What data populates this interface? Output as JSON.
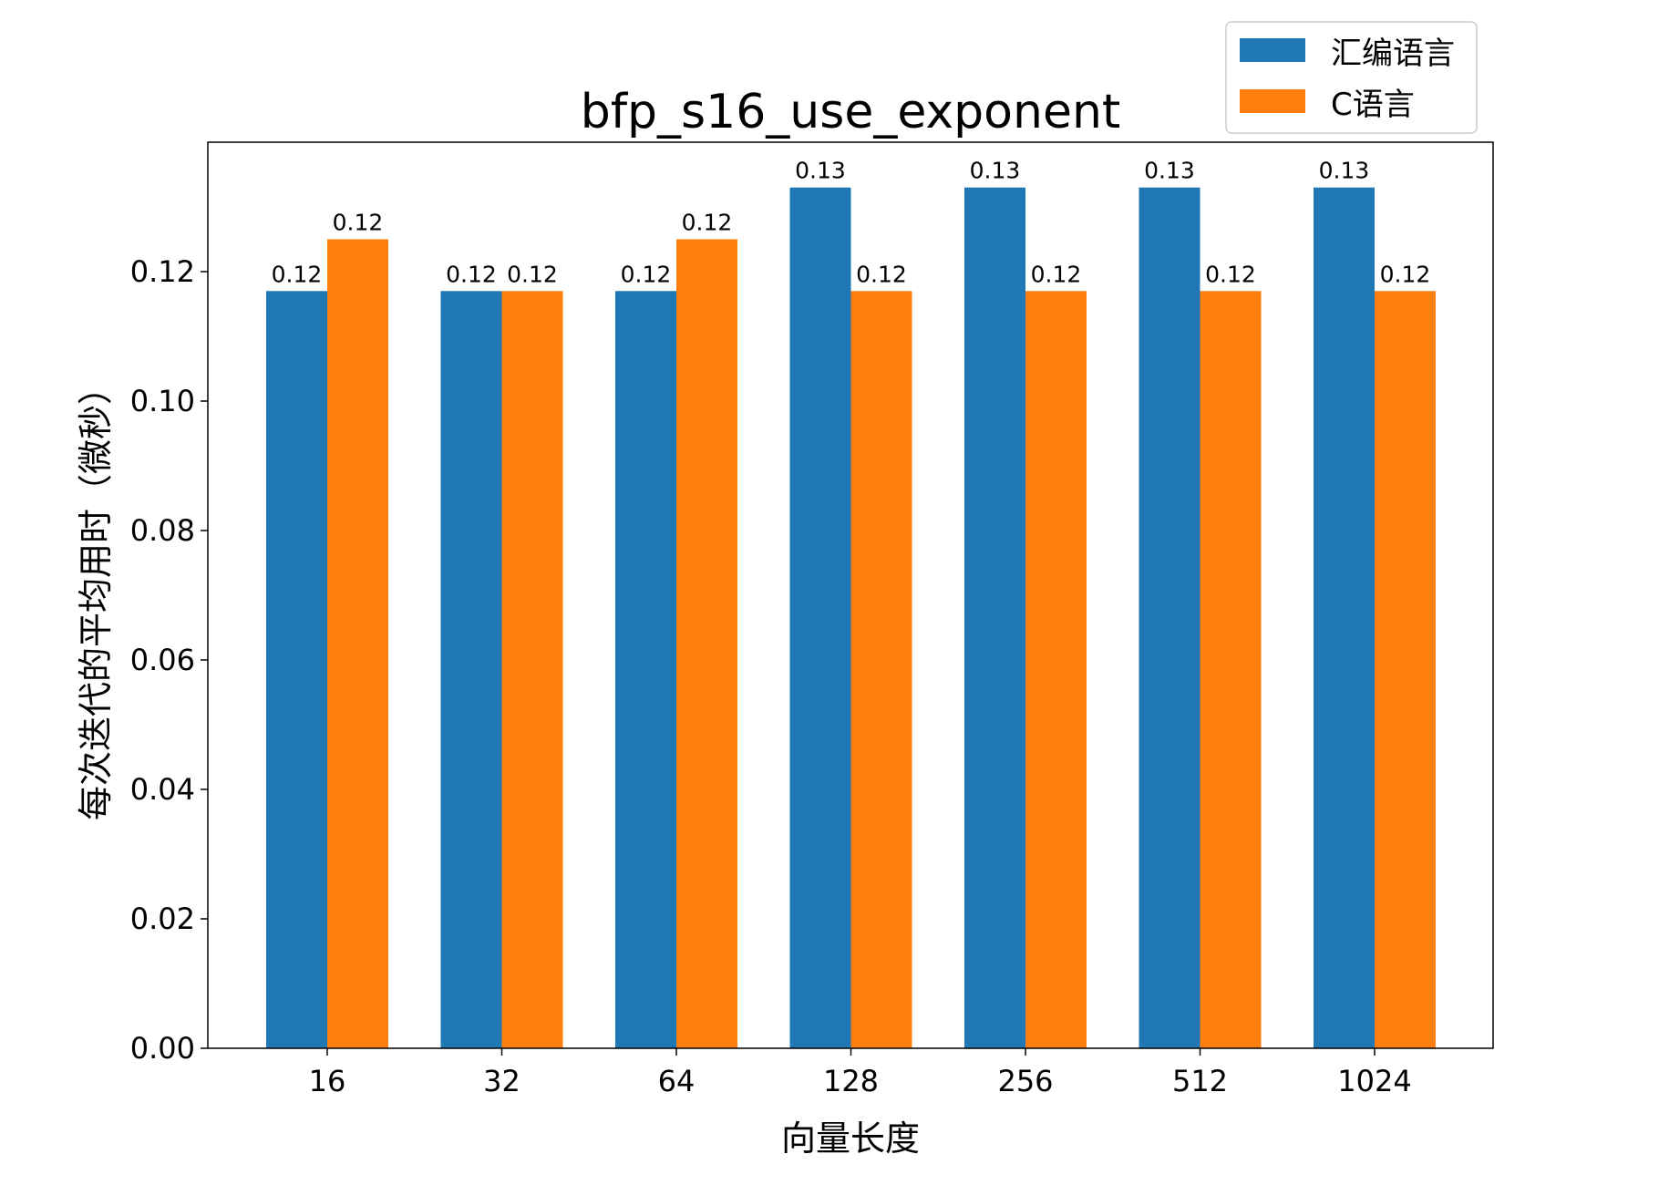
{
  "chart_data": {
    "type": "bar",
    "title": "bfp_s16_use_exponent",
    "xlabel": "向量长度",
    "ylabel": "每次迭代的平均用时（微秒）",
    "categories": [
      "16",
      "32",
      "64",
      "128",
      "256",
      "512",
      "1024"
    ],
    "series": [
      {
        "name": "汇编语言",
        "color": "#1f77b4",
        "values": [
          0.117,
          0.117,
          0.117,
          0.133,
          0.133,
          0.133,
          0.133
        ],
        "labels": [
          "0.12",
          "0.12",
          "0.12",
          "0.13",
          "0.13",
          "0.13",
          "0.13"
        ]
      },
      {
        "name": "C语言",
        "color": "#ff7f0e",
        "values": [
          0.125,
          0.117,
          0.125,
          0.117,
          0.117,
          0.117,
          0.117
        ],
        "labels": [
          "0.12",
          "0.12",
          "0.12",
          "0.12",
          "0.12",
          "0.12",
          "0.12"
        ]
      }
    ],
    "ylim": [
      0,
      0.14
    ],
    "yticks": [
      "0.00",
      "0.02",
      "0.04",
      "0.06",
      "0.08",
      "0.10",
      "0.12"
    ],
    "grid": false,
    "legend_position": "top-right"
  }
}
